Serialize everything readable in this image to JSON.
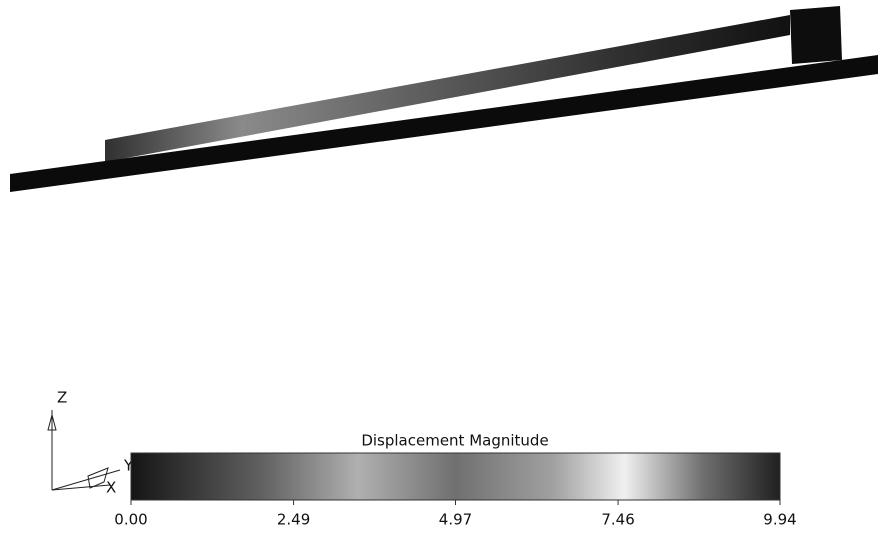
{
  "colorbar": {
    "title": "Displacement Magnitude",
    "range": [
      0,
      9.94
    ],
    "ticks": [
      {
        "value": 0,
        "label": "0.00"
      },
      {
        "value": 2.49,
        "label": "2.49"
      },
      {
        "value": 4.97,
        "label": "4.97"
      },
      {
        "value": 7.46,
        "label": "7.46"
      },
      {
        "value": 9.94,
        "label": "9.94"
      }
    ]
  },
  "triad": {
    "z": "Z",
    "y": "Y",
    "x": "X"
  }
}
